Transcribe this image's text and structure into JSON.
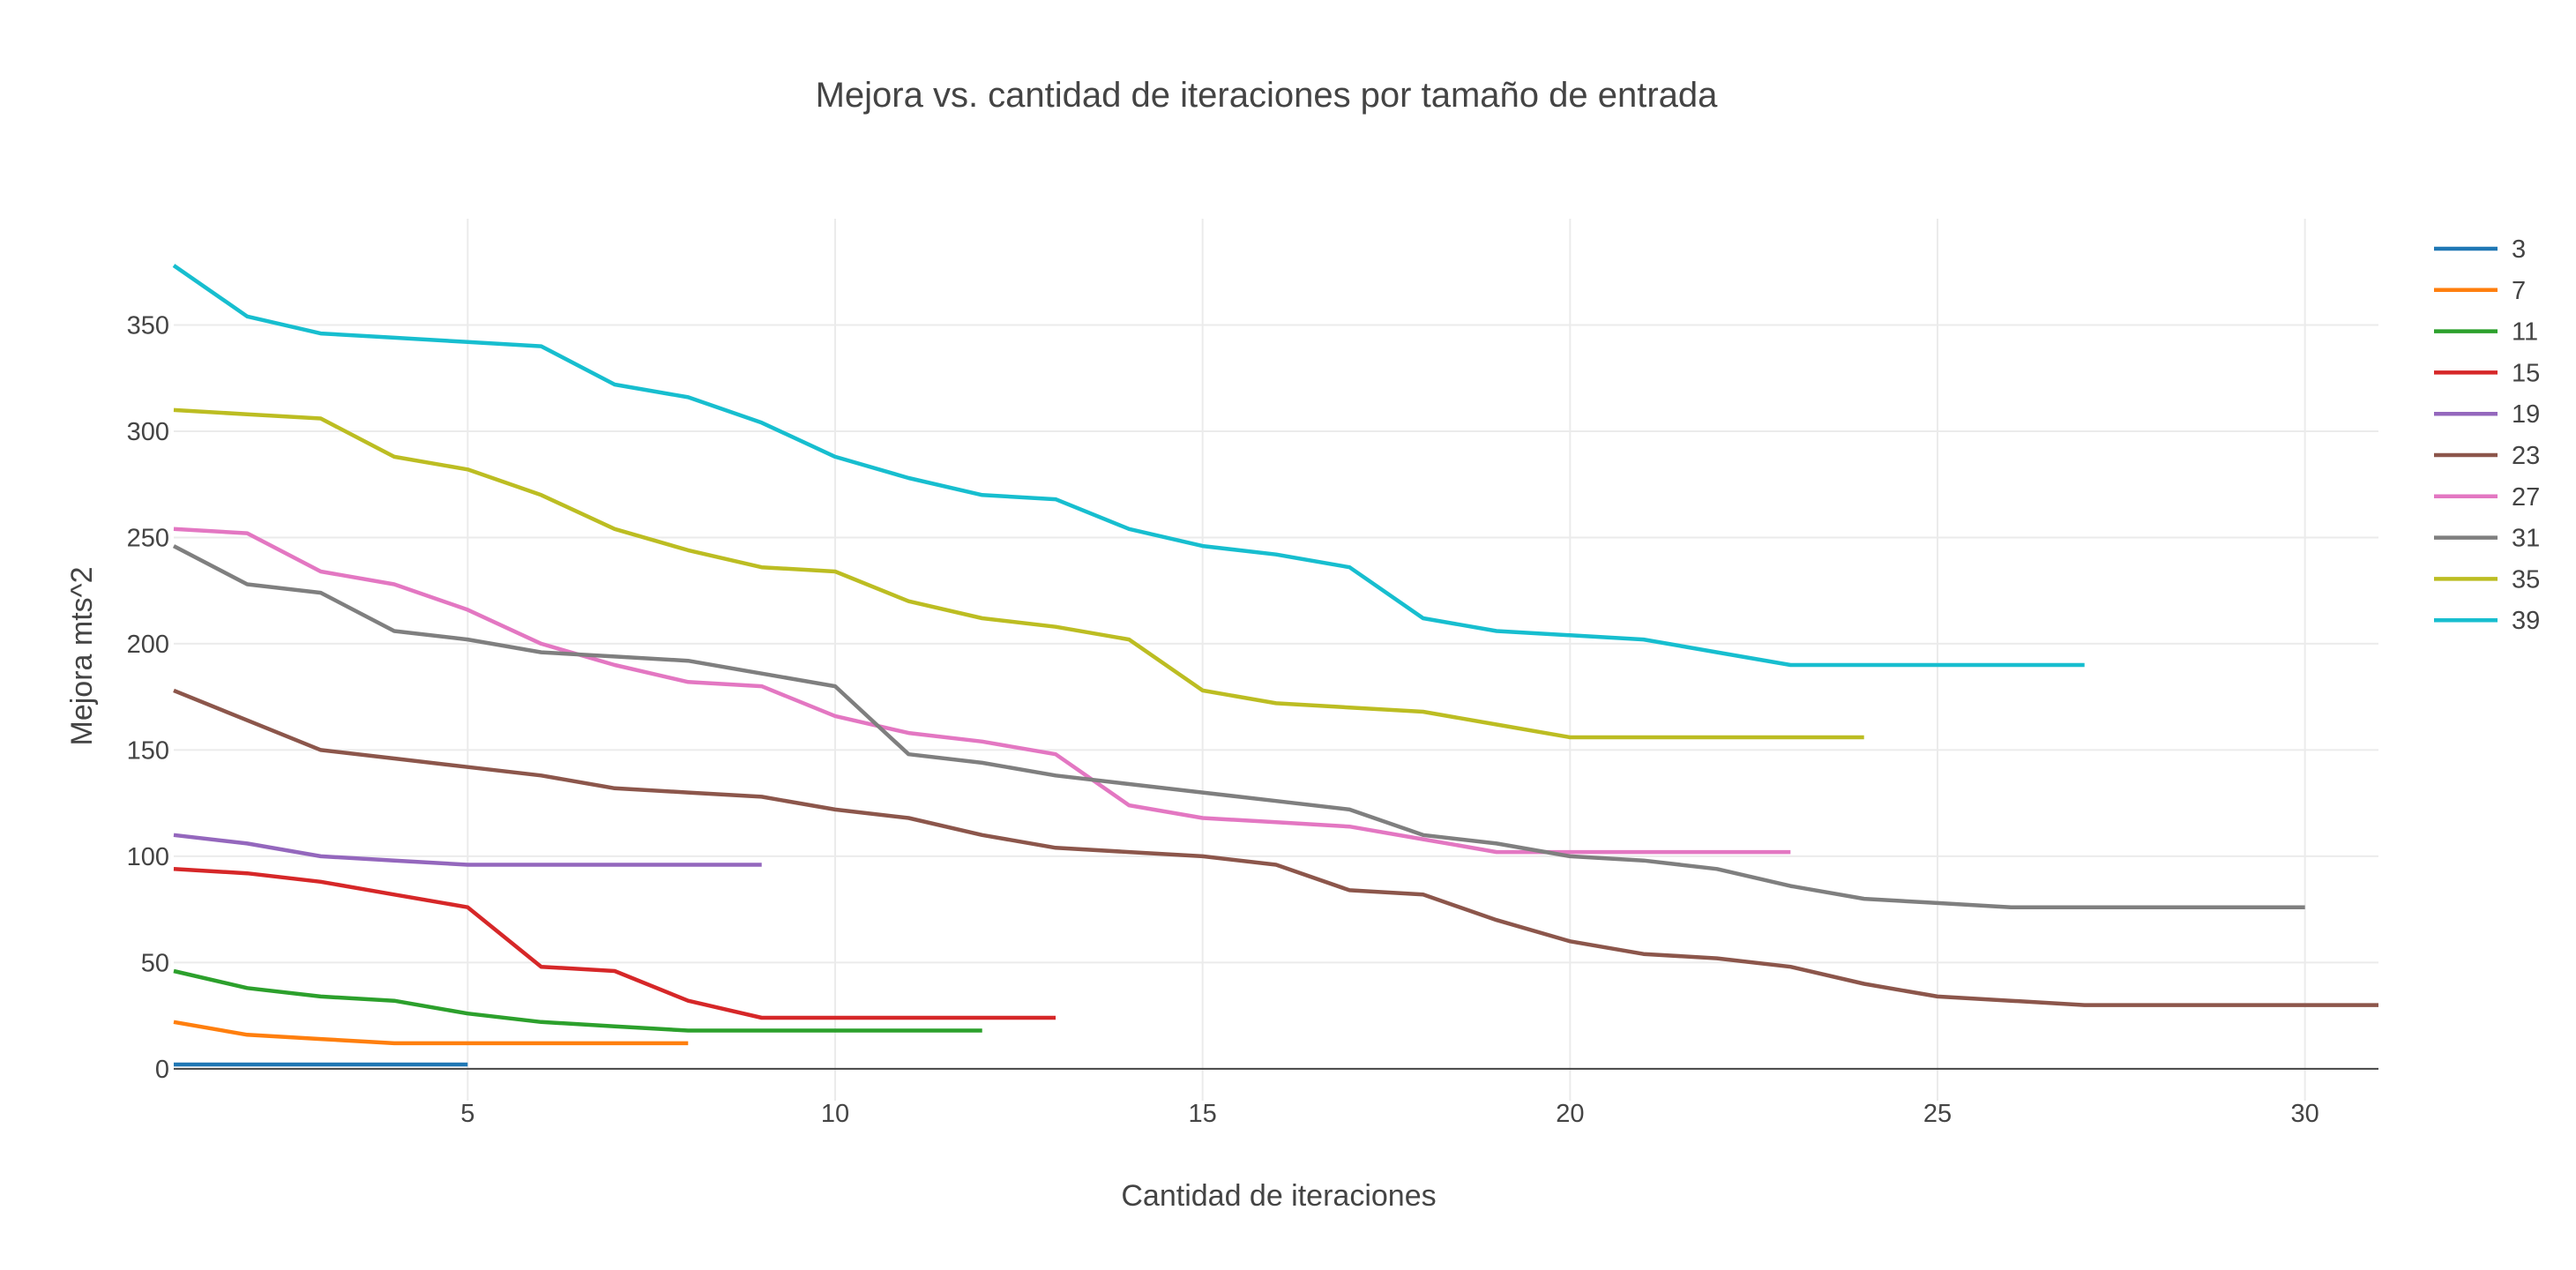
{
  "chart_data": {
    "type": "line",
    "title": "Mejora vs. cantidad de iteraciones por tamaño de entrada",
    "xlabel": "Cantidad de iteraciones",
    "ylabel": "Mejora mts^2",
    "xlim": [
      1,
      31
    ],
    "ylim": [
      -15,
      400
    ],
    "x_ticks": [
      5,
      10,
      15,
      20,
      25,
      30
    ],
    "y_ticks": [
      0,
      50,
      100,
      150,
      200,
      250,
      300,
      350
    ],
    "grid": true,
    "legend_position": "right",
    "series": [
      {
        "name": "3",
        "color": "#1f77b4",
        "x": [
          1,
          2,
          3,
          4,
          5
        ],
        "y": [
          2,
          2,
          2,
          2,
          2
        ]
      },
      {
        "name": "7",
        "color": "#ff7f0e",
        "x": [
          1,
          2,
          3,
          4,
          5,
          6,
          7,
          8
        ],
        "y": [
          22,
          16,
          14,
          12,
          12,
          12,
          12,
          12
        ]
      },
      {
        "name": "11",
        "color": "#2ca02c",
        "x": [
          1,
          2,
          3,
          4,
          5,
          6,
          7,
          8,
          9,
          10,
          11,
          12
        ],
        "y": [
          46,
          38,
          34,
          32,
          26,
          22,
          20,
          18,
          18,
          18,
          18,
          18
        ]
      },
      {
        "name": "15",
        "color": "#d62728",
        "x": [
          1,
          2,
          3,
          4,
          5,
          6,
          7,
          8,
          9,
          10,
          11,
          12,
          13
        ],
        "y": [
          94,
          92,
          88,
          82,
          76,
          48,
          46,
          32,
          24,
          24,
          24,
          24,
          24
        ]
      },
      {
        "name": "19",
        "color": "#9467bd",
        "x": [
          1,
          2,
          3,
          4,
          5,
          6,
          7,
          8,
          9
        ],
        "y": [
          110,
          106,
          100,
          98,
          96,
          96,
          96,
          96,
          96
        ]
      },
      {
        "name": "23",
        "color": "#8c564b",
        "x": [
          1,
          2,
          3,
          4,
          5,
          6,
          7,
          8,
          9,
          10,
          11,
          12,
          13,
          14,
          15,
          16,
          17,
          18,
          19,
          20,
          21,
          22,
          23,
          24,
          25,
          26,
          27,
          28,
          29,
          30,
          31
        ],
        "y": [
          178,
          164,
          150,
          146,
          142,
          138,
          132,
          130,
          128,
          122,
          118,
          110,
          104,
          102,
          100,
          96,
          84,
          82,
          70,
          60,
          54,
          52,
          48,
          40,
          34,
          32,
          30,
          30,
          30,
          30,
          30
        ]
      },
      {
        "name": "27",
        "color": "#e377c2",
        "x": [
          1,
          2,
          3,
          4,
          5,
          6,
          7,
          8,
          9,
          10,
          11,
          12,
          13,
          14,
          15,
          16,
          17,
          18,
          19,
          20,
          21,
          22,
          23
        ],
        "y": [
          254,
          252,
          234,
          228,
          216,
          200,
          190,
          182,
          180,
          166,
          158,
          154,
          148,
          124,
          118,
          116,
          114,
          108,
          102,
          102,
          102,
          102,
          102
        ]
      },
      {
        "name": "31",
        "color": "#7f7f7f",
        "x": [
          1,
          2,
          3,
          4,
          5,
          6,
          7,
          8,
          9,
          10,
          11,
          12,
          13,
          14,
          15,
          16,
          17,
          18,
          19,
          20,
          21,
          22,
          23,
          24,
          25,
          26,
          27,
          28,
          29,
          30
        ],
        "y": [
          246,
          228,
          224,
          206,
          202,
          196,
          194,
          192,
          186,
          180,
          148,
          144,
          138,
          134,
          130,
          126,
          122,
          110,
          106,
          100,
          98,
          94,
          86,
          80,
          78,
          76,
          76,
          76,
          76,
          76
        ]
      },
      {
        "name": "35",
        "color": "#bcbd22",
        "x": [
          1,
          2,
          3,
          4,
          5,
          6,
          7,
          8,
          9,
          10,
          11,
          12,
          13,
          14,
          15,
          16,
          17,
          18,
          19,
          20,
          21,
          22,
          23,
          24
        ],
        "y": [
          310,
          308,
          306,
          288,
          282,
          270,
          254,
          244,
          236,
          234,
          220,
          212,
          208,
          202,
          178,
          172,
          170,
          168,
          162,
          156,
          156,
          156,
          156,
          156
        ]
      },
      {
        "name": "39",
        "color": "#17becf",
        "x": [
          1,
          2,
          3,
          4,
          5,
          6,
          7,
          8,
          9,
          10,
          11,
          12,
          13,
          14,
          15,
          16,
          17,
          18,
          19,
          20,
          21,
          22,
          23,
          24,
          25,
          26,
          27
        ],
        "y": [
          378,
          354,
          346,
          344,
          342,
          340,
          322,
          316,
          304,
          288,
          278,
          270,
          268,
          254,
          246,
          242,
          236,
          212,
          206,
          204,
          202,
          196,
          190,
          190,
          190,
          190,
          190
        ]
      }
    ]
  }
}
